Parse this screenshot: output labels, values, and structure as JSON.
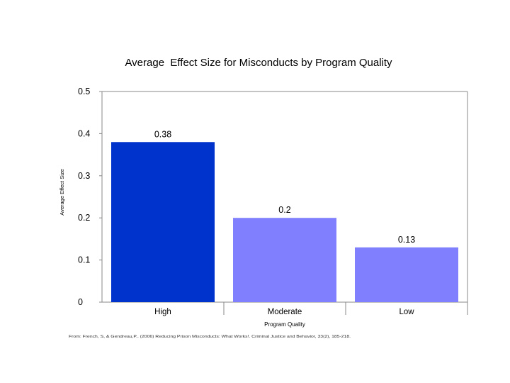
{
  "chart_data": {
    "type": "bar",
    "title": "Average  Effect Size for Misconducts by Program Quality",
    "xlabel": "Program Quality",
    "ylabel": "Average Effect Size",
    "categories": [
      "High",
      "Moderate",
      "Low"
    ],
    "values": [
      0.38,
      0.2,
      0.13
    ],
    "value_labels": [
      "0.38",
      "0.2",
      "0.13"
    ],
    "ylim": [
      0,
      0.5
    ],
    "yticks": [
      0,
      0.1,
      0.2,
      0.3,
      0.4,
      0.5
    ],
    "ytick_labels": [
      "0",
      "0.1",
      "0.2",
      "0.3",
      "0.4",
      "0.5"
    ],
    "bar_colors": [
      "#0033cc",
      "#8080ff",
      "#8080ff"
    ],
    "grid": false,
    "legend": "none"
  },
  "source_note": "From: French, S, & Gendreau,P.. (2006) Reducing Prison Misconducts: What Works!. Criminal Justice and Behavior, 33(2), 185-218."
}
